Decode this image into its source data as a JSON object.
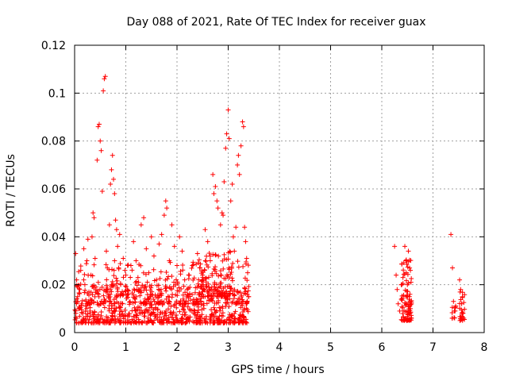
{
  "chart_data": {
    "type": "scatter",
    "title": "Day 088 of 2021, Rate Of TEC Index for receiver guax",
    "xlabel": "GPS time / hours",
    "ylabel": "ROTI / TECUs",
    "xlim": [
      0,
      8
    ],
    "ylim": [
      0,
      0.12
    ],
    "x_ticks": [
      "0",
      "1",
      "2",
      "3",
      "4",
      "5",
      "6",
      "7",
      "8"
    ],
    "y_ticks": [
      "0",
      "0.02",
      "0.04",
      "0.06",
      "0.08",
      "0.1",
      "0.12"
    ],
    "grid": true,
    "marker": "plus",
    "color": "#ff0000",
    "series": [
      {
        "points": [
          [
            0.02,
            0.033
          ],
          [
            0.04,
            0.022
          ],
          [
            0.06,
            0.015
          ],
          [
            0.08,
            0.01
          ],
          [
            0.1,
            0.018
          ],
          [
            0.12,
            0.026
          ],
          [
            0.14,
            0.012
          ],
          [
            0.16,
            0.008
          ],
          [
            0.18,
            0.035
          ],
          [
            0.2,
            0.02
          ],
          [
            0.22,
            0.013
          ],
          [
            0.24,
            0.03
          ],
          [
            0.26,
            0.039
          ],
          [
            0.28,
            0.017
          ],
          [
            0.3,
            0.009
          ],
          [
            0.32,
            0.024
          ],
          [
            0.34,
            0.04
          ],
          [
            0.36,
            0.05
          ],
          [
            0.38,
            0.048
          ],
          [
            0.4,
            0.031
          ],
          [
            0.42,
            0.019
          ],
          [
            0.44,
            0.072
          ],
          [
            0.46,
            0.086
          ],
          [
            0.48,
            0.087
          ],
          [
            0.5,
            0.08
          ],
          [
            0.52,
            0.076
          ],
          [
            0.54,
            0.059
          ],
          [
            0.56,
            0.101
          ],
          [
            0.58,
            0.106
          ],
          [
            0.6,
            0.107
          ],
          [
            0.62,
            0.034
          ],
          [
            0.64,
            0.027
          ],
          [
            0.66,
            0.015
          ],
          [
            0.68,
            0.045
          ],
          [
            0.7,
            0.062
          ],
          [
            0.72,
            0.068
          ],
          [
            0.74,
            0.074
          ],
          [
            0.76,
            0.064
          ],
          [
            0.78,
            0.058
          ],
          [
            0.8,
            0.047
          ],
          [
            0.82,
            0.043
          ],
          [
            0.84,
            0.036
          ],
          [
            0.86,
            0.027
          ],
          [
            0.88,
            0.041
          ],
          [
            0.9,
            0.02
          ],
          [
            0.95,
            0.031
          ],
          [
            1.0,
            0.024
          ],
          [
            1.05,
            0.016
          ],
          [
            1.1,
            0.028
          ],
          [
            1.15,
            0.038
          ],
          [
            1.2,
            0.03
          ],
          [
            1.25,
            0.021
          ],
          [
            1.3,
            0.045
          ],
          [
            1.35,
            0.048
          ],
          [
            1.4,
            0.035
          ],
          [
            1.45,
            0.025
          ],
          [
            1.5,
            0.04
          ],
          [
            1.55,
            0.032
          ],
          [
            1.6,
            0.022
          ],
          [
            1.65,
            0.037
          ],
          [
            1.7,
            0.041
          ],
          [
            1.75,
            0.049
          ],
          [
            1.78,
            0.055
          ],
          [
            1.8,
            0.052
          ],
          [
            1.85,
            0.03
          ],
          [
            1.9,
            0.045
          ],
          [
            1.95,
            0.036
          ],
          [
            2.0,
            0.028
          ],
          [
            2.05,
            0.04
          ],
          [
            2.1,
            0.034
          ],
          [
            2.15,
            0.022
          ],
          [
            2.2,
            0.018
          ],
          [
            2.3,
            0.028
          ],
          [
            2.4,
            0.033
          ],
          [
            2.45,
            0.027
          ],
          [
            2.5,
            0.022
          ],
          [
            2.55,
            0.043
          ],
          [
            2.6,
            0.038
          ],
          [
            2.65,
            0.03
          ],
          [
            2.7,
            0.066
          ],
          [
            2.72,
            0.058
          ],
          [
            2.75,
            0.061
          ],
          [
            2.78,
            0.055
          ],
          [
            2.8,
            0.052
          ],
          [
            2.85,
            0.045
          ],
          [
            2.88,
            0.05
          ],
          [
            2.9,
            0.049
          ],
          [
            2.92,
            0.063
          ],
          [
            2.95,
            0.077
          ],
          [
            2.97,
            0.083
          ],
          [
            3.0,
            0.093
          ],
          [
            3.02,
            0.081
          ],
          [
            3.05,
            0.055
          ],
          [
            3.08,
            0.062
          ],
          [
            3.1,
            0.04
          ],
          [
            3.12,
            0.034
          ],
          [
            3.15,
            0.044
          ],
          [
            3.18,
            0.07
          ],
          [
            3.2,
            0.074
          ],
          [
            3.22,
            0.066
          ],
          [
            3.25,
            0.078
          ],
          [
            3.28,
            0.088
          ],
          [
            3.3,
            0.086
          ],
          [
            3.32,
            0.044
          ],
          [
            3.34,
            0.038
          ],
          [
            3.36,
            0.031
          ],
          [
            3.38,
            0.025
          ],
          [
            3.4,
            0.015
          ],
          [
            6.25,
            0.036
          ],
          [
            6.28,
            0.024
          ],
          [
            6.3,
            0.018
          ],
          [
            6.32,
            0.012
          ],
          [
            6.35,
            0.009
          ],
          [
            6.45,
            0.036
          ],
          [
            6.47,
            0.03
          ],
          [
            6.48,
            0.025
          ],
          [
            6.5,
            0.02
          ],
          [
            6.52,
            0.034
          ],
          [
            6.54,
            0.015
          ],
          [
            6.56,
            0.01
          ],
          [
            6.58,
            0.006
          ],
          [
            7.35,
            0.041
          ],
          [
            7.38,
            0.027
          ],
          [
            7.4,
            0.013
          ],
          [
            7.42,
            0.009
          ],
          [
            7.52,
            0.022
          ],
          [
            7.54,
            0.018
          ],
          [
            7.56,
            0.012
          ],
          [
            7.58,
            0.008
          ],
          [
            7.6,
            0.006
          ]
        ]
      }
    ],
    "dense_bands": [
      {
        "x_range": [
          0.0,
          3.4
        ],
        "y_range": [
          0.004,
          0.02
        ],
        "count": 700
      },
      {
        "x_range": [
          0.0,
          3.4
        ],
        "y_range": [
          0.012,
          0.03
        ],
        "count": 260
      },
      {
        "x_range": [
          2.4,
          3.1
        ],
        "y_range": [
          0.015,
          0.034
        ],
        "count": 110
      },
      {
        "x_range": [
          6.38,
          6.58
        ],
        "y_range": [
          0.005,
          0.032
        ],
        "count": 90
      },
      {
        "x_range": [
          7.35,
          7.45
        ],
        "y_range": [
          0.006,
          0.014
        ],
        "count": 10
      },
      {
        "x_range": [
          7.52,
          7.62
        ],
        "y_range": [
          0.005,
          0.02
        ],
        "count": 24
      }
    ]
  }
}
